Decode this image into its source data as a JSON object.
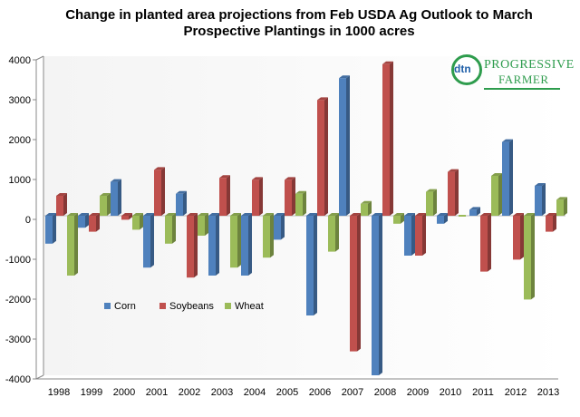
{
  "chart_data": {
    "type": "bar",
    "title_line1": "Change in planted area projections from Feb USDA Ag Outlook to March",
    "title_line2": "Prospective Plantings in 1000 acres",
    "categories": [
      "1998",
      "1999",
      "2000",
      "2001",
      "2002",
      "2003",
      "2004",
      "2005",
      "2006",
      "2007",
      "2008",
      "2009",
      "2010",
      "2011",
      "2012",
      "2013"
    ],
    "series": [
      {
        "name": "Corn",
        "color": "#4f81bd",
        "values": [
          -700,
          -300,
          850,
          -1300,
          550,
          -1500,
          -1500,
          -600,
          -2500,
          3450,
          -4000,
          -1000,
          -200,
          150,
          1850,
          750
        ]
      },
      {
        "name": "Soybeans",
        "color": "#c0504d",
        "values": [
          500,
          -400,
          -100,
          1150,
          -1550,
          950,
          900,
          900,
          2900,
          -3400,
          3800,
          -1000,
          1100,
          -1400,
          -1100,
          -400
        ]
      },
      {
        "name": "Wheat",
        "color": "#9bbb59",
        "values": [
          -1500,
          500,
          -350,
          -700,
          -500,
          -1300,
          -1050,
          550,
          -900,
          300,
          -200,
          600,
          0,
          1000,
          -2100,
          400
        ]
      }
    ],
    "ylim": [
      -4000,
      4000
    ],
    "yticks": [
      "4000",
      "3000",
      "2000",
      "1000",
      "0",
      "-1000",
      "-2000",
      "-3000",
      "-4000"
    ],
    "legend_position": "middle-left",
    "grid": false
  },
  "logo": {
    "mark": "dtn",
    "line1": "PROGRESSIVE",
    "line2": "FARMER"
  }
}
